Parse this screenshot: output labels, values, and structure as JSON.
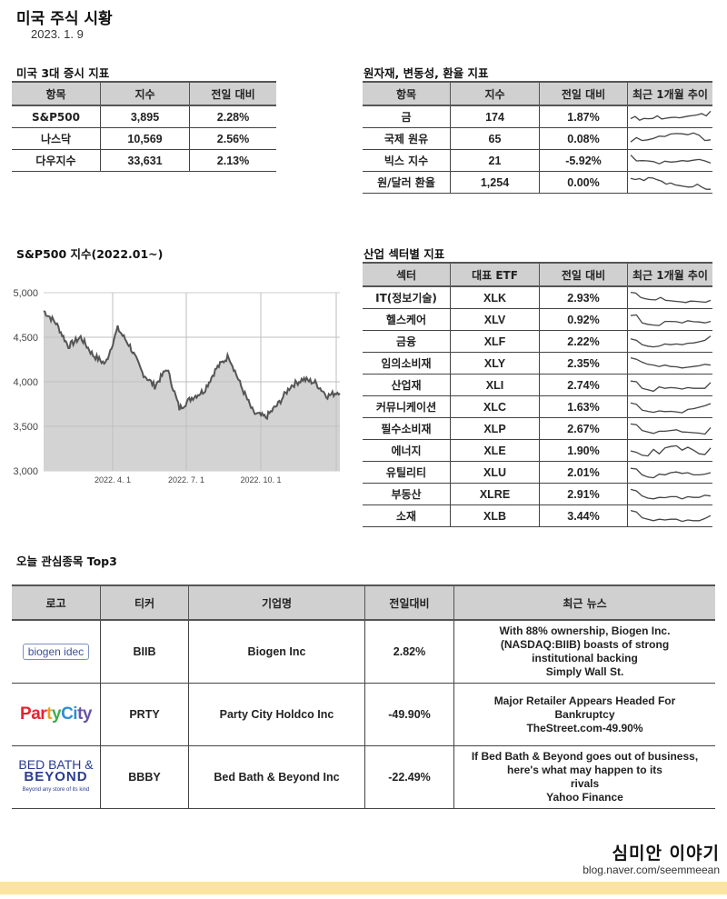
{
  "header": {
    "title": "미국 주식 시황",
    "date": "2023. 1. 9"
  },
  "indices": {
    "title": "미국 3대 증시 지표",
    "columns": [
      "항목",
      "지수",
      "전일 대비"
    ],
    "rows": [
      {
        "name": "S&P500",
        "value": "3,895",
        "change": "2.28%",
        "dir": "up"
      },
      {
        "name": "나스닥",
        "value": "10,569",
        "change": "2.56%",
        "dir": "up"
      },
      {
        "name": "다우지수",
        "value": "33,631",
        "change": "2.13%",
        "dir": "up"
      }
    ]
  },
  "commodities": {
    "title": "원자재, 변동성, 환율 지표",
    "columns": [
      "항목",
      "지수",
      "전일 대비",
      "최근 1개월 추이"
    ],
    "rows": [
      {
        "name": "금",
        "value": "174",
        "change": "1.87%",
        "dir": "up",
        "spark": [
          40,
          55,
          30,
          42,
          40,
          42,
          60,
          38,
          44,
          48,
          50,
          46,
          52,
          58,
          62,
          66,
          75,
          60,
          92
        ]
      },
      {
        "name": "국제 원유",
        "value": "65",
        "change": "0.08%",
        "dir": "up",
        "spark": [
          30,
          60,
          40,
          45,
          55,
          70,
          68,
          85,
          88,
          86,
          80,
          92,
          76,
          40,
          45
        ]
      },
      {
        "name": "빅스 지수",
        "value": "21",
        "change": "-5.92%",
        "dir": "down",
        "spark": [
          90,
          50,
          52,
          50,
          45,
          30,
          48,
          42,
          45,
          52,
          48,
          55,
          60,
          50,
          35
        ]
      },
      {
        "name": "원/달러 환율",
        "value": "1,254",
        "change": "0.00%",
        "dir": "flat",
        "spark": [
          80,
          72,
          78,
          65,
          85,
          82,
          70,
          60,
          40,
          48,
          35,
          30,
          25,
          20,
          22,
          40,
          20,
          5,
          5
        ]
      }
    ]
  },
  "sp500_chart_title": "S&P500 지수(2022.01~)",
  "sectors": {
    "title": "산업 섹터별 지표",
    "columns": [
      "섹터",
      "대표 ETF",
      "전일 대비",
      "최근 1개월 추이"
    ],
    "rows": [
      {
        "name": "IT(정보기술)",
        "etf": "XLK",
        "change": "2.93%",
        "dir": "up",
        "spark": [
          90,
          85,
          55,
          45,
          40,
          38,
          55,
          35,
          32,
          28,
          25,
          20,
          30,
          28,
          25,
          22,
          35
        ]
      },
      {
        "name": "헬스케어",
        "etf": "XLV",
        "change": "0.92%",
        "dir": "up",
        "spark": [
          80,
          85,
          30,
          20,
          15,
          12,
          40,
          40,
          38,
          30,
          45,
          38,
          36,
          30,
          40
        ]
      },
      {
        "name": "금융",
        "etf": "XLF",
        "change": "2.22%",
        "dir": "up",
        "spark": [
          70,
          60,
          30,
          20,
          15,
          20,
          35,
          30,
          35,
          30,
          40,
          42,
          50,
          60,
          90
        ]
      },
      {
        "name": "임의소비재",
        "etf": "XLY",
        "change": "2.35%",
        "dir": "up",
        "spark": [
          90,
          80,
          60,
          45,
          40,
          30,
          40,
          30,
          28,
          20,
          25,
          30,
          35,
          45,
          40
        ]
      },
      {
        "name": "산업재",
        "etf": "XLI",
        "change": "2.74%",
        "dir": "up",
        "spark": [
          80,
          75,
          30,
          20,
          10,
          40,
          30,
          35,
          32,
          25,
          35,
          30,
          30,
          30,
          70
        ]
      },
      {
        "name": "커뮤니케이션",
        "etf": "XLC",
        "change": "1.63%",
        "dir": "up",
        "spark": [
          80,
          70,
          30,
          22,
          15,
          25,
          20,
          22,
          18,
          12,
          35,
          40,
          50,
          60,
          75
        ]
      },
      {
        "name": "필수소비재",
        "etf": "XLP",
        "change": "2.67%",
        "dir": "up",
        "spark": [
          85,
          80,
          40,
          30,
          20,
          35,
          35,
          40,
          45,
          30,
          28,
          25,
          22,
          15,
          60
        ]
      },
      {
        "name": "에너지",
        "etf": "XLE",
        "change": "1.90%",
        "dir": "up",
        "spark": [
          50,
          40,
          20,
          15,
          60,
          30,
          70,
          80,
          85,
          55,
          75,
          55,
          30,
          25,
          70
        ]
      },
      {
        "name": "유틸리티",
        "etf": "XLU",
        "change": "2.01%",
        "dir": "up",
        "spark": [
          80,
          75,
          35,
          20,
          15,
          40,
          35,
          50,
          55,
          45,
          50,
          35,
          35,
          40,
          50
        ]
      },
      {
        "name": "부동산",
        "etf": "XLRE",
        "change": "2.91%",
        "dir": "up",
        "spark": [
          85,
          75,
          40,
          25,
          20,
          30,
          28,
          35,
          35,
          20,
          35,
          30,
          30,
          45,
          40
        ]
      },
      {
        "name": "소재",
        "etf": "XLB",
        "change": "3.44%",
        "dir": "up",
        "spark": [
          90,
          80,
          40,
          30,
          20,
          30,
          25,
          30,
          30,
          15,
          25,
          20,
          20,
          35,
          55
        ]
      }
    ]
  },
  "top3": {
    "title": "오늘 관심종목 Top3",
    "columns": [
      "로고",
      "티커",
      "기업명",
      "전일대비",
      "최근 뉴스"
    ],
    "rows": [
      {
        "logo": "biogen idec",
        "ticker": "BIIB",
        "company": "Biogen Inc",
        "change": "2.82%",
        "dir": "up",
        "news": [
          "With 88% ownership, Biogen Inc.",
          "(NASDAQ:BIIB) boasts of strong",
          "institutional backing",
          "Simply Wall St."
        ]
      },
      {
        "logo": "Party City",
        "ticker": "PRTY",
        "company": "Party City Holdco Inc",
        "change": "-49.90%",
        "dir": "down",
        "news": [
          "Major Retailer Appears Headed For",
          "Bankruptcy",
          "TheStreet.com-49.90%"
        ]
      },
      {
        "logo": "BED BATH & BEYOND",
        "logo_tagline": "Beyond any store of its kind",
        "ticker": "BBBY",
        "company": "Bed Bath & Beyond Inc",
        "change": "-22.49%",
        "dir": "down",
        "news": [
          "If Bed Bath & Beyond goes out of business,",
          "here's what may happen to its",
          "rivals",
          "Yahoo Finance"
        ]
      }
    ]
  },
  "footer": {
    "brand": "심미안 이야기",
    "url": "blog.naver.com/seemmeean"
  },
  "colors": {
    "up": "#5fb57a",
    "down": "#e8262b",
    "header_bg": "#d0d0d0",
    "accent_bar": "#fbe4a0",
    "chart_fill": "#d3d3d3",
    "chart_line": "#555555"
  },
  "chart_data": {
    "type": "area",
    "title": "S&P500 지수(2022.01~)",
    "xlabel": "",
    "ylabel": "",
    "ylim": [
      3000,
      5000
    ],
    "yticks": [
      "5,000",
      "4,500",
      "4,000",
      "3,500",
      "3,000"
    ],
    "xticks": [
      "2022. 4. 1",
      "2022. 7. 1",
      "2022. 10. 1"
    ],
    "grid": true,
    "x": [
      "2022-01",
      "2022-01",
      "2022-02",
      "2022-02",
      "2022-03",
      "2022-03",
      "2022-04",
      "2022-04",
      "2022-05",
      "2022-05",
      "2022-06",
      "2022-06",
      "2022-07",
      "2022-07",
      "2022-08",
      "2022-08",
      "2022-09",
      "2022-09",
      "2022-10",
      "2022-10",
      "2022-11",
      "2022-11",
      "2022-12",
      "2022-12",
      "2023-01"
    ],
    "values": [
      4796,
      4660,
      4400,
      4500,
      4300,
      4200,
      4600,
      4400,
      4100,
      3950,
      4150,
      3700,
      3820,
      3900,
      4150,
      4290,
      3950,
      3650,
      3600,
      3750,
      3950,
      4030,
      3990,
      3840,
      3895
    ]
  }
}
